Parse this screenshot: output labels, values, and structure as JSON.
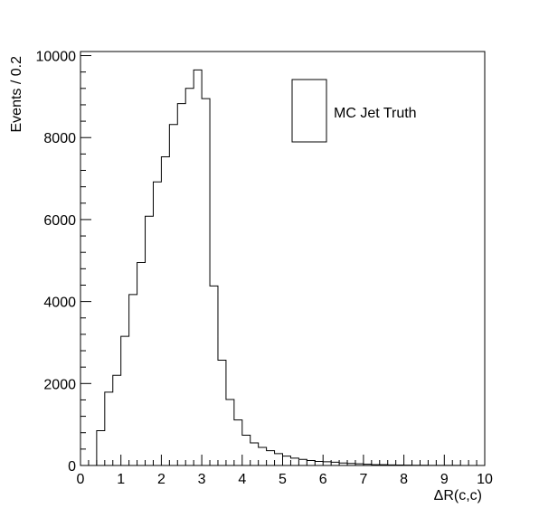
{
  "chart_data": {
    "type": "histogram",
    "title": "",
    "xlabel": "ΔR(c,c)",
    "ylabel": "Events / 0.2",
    "xlim": [
      0,
      10
    ],
    "ylim": [
      0,
      10100
    ],
    "bin_width": 0.2,
    "x_ticks": [
      "0",
      "1",
      "2",
      "3",
      "4",
      "5",
      "6",
      "7",
      "8",
      "9",
      "10"
    ],
    "y_ticks": [
      "0",
      "2000",
      "4000",
      "6000",
      "8000",
      "10000"
    ],
    "legend": {
      "position": "top-right",
      "entries": [
        "MC Jet Truth"
      ]
    },
    "grid": false,
    "series": [
      {
        "name": "MC Jet Truth",
        "bin_edges": [
          0.0,
          0.2,
          0.4,
          0.6,
          0.8,
          1.0,
          1.2,
          1.4,
          1.6,
          1.8,
          2.0,
          2.2,
          2.4,
          2.6,
          2.8,
          3.0,
          3.2,
          3.4,
          3.6,
          3.8,
          4.0,
          4.2,
          4.4,
          4.6,
          4.8,
          5.0,
          5.2,
          5.4,
          5.6,
          5.8,
          6.0,
          6.2,
          6.4,
          6.6,
          6.8,
          7.0,
          7.2,
          7.4,
          7.6,
          7.8,
          8.0,
          8.2,
          8.4,
          8.6,
          8.8,
          9.0,
          9.2,
          9.4,
          9.6,
          9.8,
          10.0
        ],
        "values": [
          0,
          0,
          850,
          1790,
          2200,
          3150,
          4170,
          4950,
          6080,
          6920,
          7530,
          8320,
          8830,
          9200,
          9650,
          8950,
          4380,
          2570,
          1610,
          1110,
          740,
          550,
          440,
          360,
          290,
          230,
          180,
          150,
          120,
          100,
          90,
          80,
          60,
          50,
          40,
          30,
          20,
          20,
          15,
          10,
          8,
          6,
          5,
          4,
          3,
          2,
          2,
          1,
          1,
          1
        ]
      }
    ]
  }
}
